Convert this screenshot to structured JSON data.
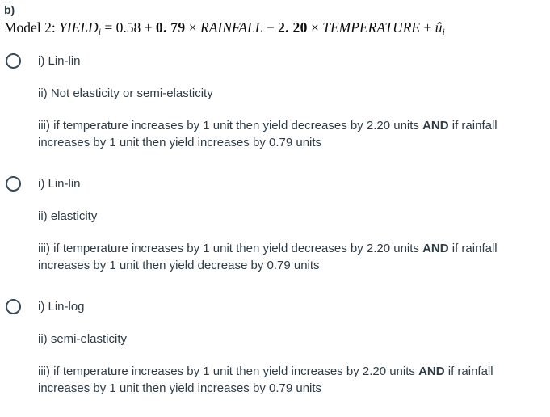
{
  "page": {
    "background": "#ffffff",
    "text_color": "#2d3b45",
    "formula_color": "#0d0d0d",
    "radio_border_color": "#394b58"
  },
  "header": {
    "section_label": "b)"
  },
  "formula": {
    "prefix": "Model 2: ",
    "yield_var": "YIELD",
    "yield_sub": "i",
    "equals_part": " = 0.58 + ",
    "coef_rainfall": "0. 79",
    "times_1": " × ",
    "rainfall_var": "RAINFALL",
    "minus": " − ",
    "coef_temperature": "2. 20",
    "times_2": " × ",
    "temperature_var": "TEMPERATURE",
    "plus": " + ",
    "uhat": "û",
    "uhat_sub": "i"
  },
  "options": [
    {
      "item_i": "i) Lin-lin",
      "item_ii": "ii) Not elasticity or semi-elasticity",
      "iii_line1_pre": "iii) if temperature increases by 1 unit then yield decreases by 2.20 units ",
      "iii_and": "AND",
      "iii_line1_post": " if rainfall",
      "iii_line2": "increases by 1 unit then yield increases by 0.79 units"
    },
    {
      "item_i": "i) Lin-lin",
      "item_ii": "ii) elasticity",
      "iii_line1_pre": "iii) if temperature increases by 1 unit then yield decreases by 2.20 units ",
      "iii_and": "AND",
      "iii_line1_post": " if rainfall",
      "iii_line2": "increases by 1 unit then yield decrease by 0.79 units"
    },
    {
      "item_i": "i) Lin-log",
      "item_ii": "ii) semi-elasticity",
      "iii_line1_pre": "iii) if temperature increases by 1 unit then yield increases by 2.20 units ",
      "iii_and": "AND",
      "iii_line1_post": " if rainfall",
      "iii_line2": "increases by 1 unit then yield increases by 0.79 units"
    }
  ]
}
